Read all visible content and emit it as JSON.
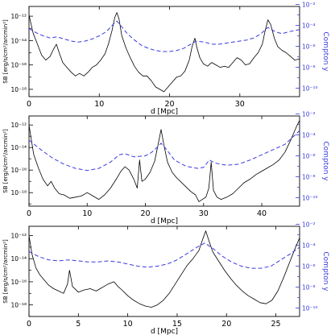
{
  "chart_data": [
    {
      "type": "line",
      "xlabel": "d [Mpc]",
      "ylabel_left": "SB [erg/s/cm²/arcmin²]",
      "ylabel_right": "Compton y",
      "xlim": [
        0,
        38.5
      ],
      "xticks": [
        0,
        10,
        20,
        30
      ],
      "ylim_left_log10": [
        -18.6,
        -11.2
      ],
      "yticks_left_exp": [
        -12,
        -14,
        -16,
        -18
      ],
      "ylim_right_log10": [
        -10.8,
        -2.2
      ],
      "yticks_right_exp": [
        -2,
        -4,
        -6,
        -8,
        -10
      ],
      "series": [
        {
          "style": "solid-black",
          "axis": "left",
          "x": [
            0,
            0.6,
            1.2,
            1.8,
            2.4,
            3.0,
            3.5,
            3.9,
            4.3,
            4.8,
            5.4,
            6.0,
            6.6,
            7.2,
            7.8,
            8.4,
            9.0,
            9.6,
            10.2,
            10.8,
            11.3,
            11.8,
            12.2,
            12.5,
            12.8,
            13.2,
            13.8,
            14.4,
            15.0,
            15.6,
            16.2,
            16.8,
            17.4,
            18.0,
            18.6,
            19.2,
            19.8,
            20.4,
            21.0,
            21.6,
            22.2,
            22.8,
            23.2,
            23.6,
            23.9,
            24.3,
            24.8,
            25.4,
            26.0,
            26.6,
            27.2,
            27.8,
            28.4,
            29.0,
            29.6,
            30.2,
            30.8,
            31.4,
            32.0,
            32.6,
            33.2,
            33.6,
            34.0,
            34.4,
            34.9,
            35.4,
            36.0,
            36.6,
            37.2,
            37.8,
            38.5
          ],
          "y_log10": [
            -11.9,
            -13.4,
            -14.3,
            -15.2,
            -15.6,
            -15.3,
            -14.7,
            -14.3,
            -15.0,
            -15.8,
            -16.2,
            -16.6,
            -16.9,
            -16.7,
            -16.9,
            -16.6,
            -16.2,
            -16.0,
            -15.6,
            -15.1,
            -14.3,
            -13.2,
            -12.1,
            -11.7,
            -12.2,
            -13.6,
            -14.6,
            -15.4,
            -16.1,
            -16.6,
            -16.9,
            -16.9,
            -17.3,
            -17.8,
            -18.0,
            -18.2,
            -17.8,
            -17.4,
            -17.0,
            -16.9,
            -16.5,
            -15.6,
            -14.5,
            -13.8,
            -14.6,
            -15.4,
            -15.9,
            -16.1,
            -15.8,
            -16.0,
            -16.2,
            -16.1,
            -16.2,
            -15.8,
            -15.4,
            -15.6,
            -16.0,
            -15.9,
            -15.4,
            -15.0,
            -14.3,
            -13.2,
            -12.3,
            -12.7,
            -13.8,
            -14.5,
            -14.8,
            -15.0,
            -15.3,
            -15.6,
            -15.5
          ]
        },
        {
          "style": "dashed-blue",
          "axis": "right",
          "x": [
            0,
            1,
            2,
            3,
            4,
            5,
            6,
            7,
            8,
            9,
            10,
            11,
            12,
            12.5,
            13,
            14,
            15,
            16,
            17,
            18,
            19,
            20,
            21,
            22,
            23,
            23.8,
            25,
            26,
            27,
            28,
            29,
            30,
            31,
            32,
            33,
            34,
            35,
            36,
            37,
            38.5
          ],
          "y_log10": [
            -4.3,
            -4.7,
            -5.0,
            -5.2,
            -5.1,
            -5.3,
            -5.5,
            -5.6,
            -5.5,
            -5.3,
            -5.0,
            -4.6,
            -3.9,
            -3.6,
            -4.0,
            -4.8,
            -5.4,
            -5.9,
            -6.2,
            -6.4,
            -6.5,
            -6.5,
            -6.4,
            -6.2,
            -5.8,
            -5.5,
            -5.6,
            -5.8,
            -5.8,
            -5.7,
            -5.6,
            -5.5,
            -5.4,
            -5.2,
            -4.8,
            -4.2,
            -4.6,
            -4.8,
            -4.6,
            -4.4
          ]
        }
      ]
    },
    {
      "type": "line",
      "xlabel": "d [Mpc]",
      "ylabel_left": "SB [erg/s/cm²/arcmin²]",
      "ylabel_right": "Compton y",
      "xlim": [
        0,
        46.5
      ],
      "xticks": [
        0,
        10,
        20,
        30,
        40
      ],
      "ylim_left_log10": [
        -19.2,
        -11.2
      ],
      "yticks_left_exp": [
        -12,
        -14,
        -16,
        -18
      ],
      "ylim_right_log10": [
        -10.8,
        -2.2
      ],
      "yticks_right_exp": [
        -2,
        -4,
        -6,
        -8,
        -10
      ],
      "series": [
        {
          "style": "solid-black",
          "axis": "left",
          "x": [
            0,
            0.8,
            1.6,
            2.4,
            3.2,
            3.8,
            4.4,
            5.2,
            6.0,
            7.0,
            8.0,
            9.0,
            10.0,
            11.0,
            12.0,
            13.0,
            14.0,
            15.0,
            15.8,
            16.5,
            17.2,
            18.0,
            18.6,
            19.0,
            19.4,
            20.0,
            20.8,
            21.6,
            22.2,
            22.7,
            23.2,
            23.8,
            24.6,
            25.4,
            26.2,
            27.0,
            27.8,
            28.6,
            29.2,
            29.8,
            30.4,
            30.9,
            31.3,
            31.7,
            32.3,
            33.0,
            34.0,
            35.0,
            36.0,
            37.0,
            38.0,
            39.0,
            40.0,
            41.0,
            42.0,
            43.0,
            44.0,
            45.0,
            46.0,
            46.5
          ],
          "y_log10": [
            -12.0,
            -14.6,
            -15.8,
            -16.8,
            -17.4,
            -17.0,
            -17.6,
            -18.1,
            -18.2,
            -18.5,
            -18.4,
            -18.3,
            -18.0,
            -18.3,
            -18.6,
            -18.2,
            -17.6,
            -16.8,
            -16.1,
            -15.7,
            -16.0,
            -16.8,
            -17.6,
            -15.1,
            -17.0,
            -16.8,
            -16.2,
            -15.2,
            -13.7,
            -12.4,
            -13.8,
            -15.3,
            -16.2,
            -16.7,
            -17.1,
            -17.5,
            -17.9,
            -18.2,
            -18.8,
            -18.6,
            -18.4,
            -17.6,
            -15.3,
            -17.8,
            -18.4,
            -18.6,
            -18.4,
            -18.1,
            -17.6,
            -17.1,
            -16.8,
            -16.4,
            -16.1,
            -15.8,
            -15.5,
            -15.1,
            -14.4,
            -13.3,
            -12.1,
            -11.6
          ]
        },
        {
          "style": "dashed-blue",
          "axis": "right",
          "x": [
            0,
            2,
            4,
            6,
            8,
            10,
            12,
            14,
            15.5,
            16.5,
            18,
            20,
            21,
            22,
            22.7,
            23.5,
            25,
            27,
            29,
            30,
            31,
            32,
            34,
            36,
            38,
            40,
            42,
            44,
            46.5
          ],
          "y_log10": [
            -4.5,
            -5.4,
            -6.2,
            -6.8,
            -7.2,
            -7.4,
            -7.2,
            -6.6,
            -5.9,
            -5.8,
            -6.1,
            -6.0,
            -5.7,
            -5.2,
            -4.8,
            -5.3,
            -6.4,
            -7.0,
            -7.2,
            -7.1,
            -6.4,
            -6.7,
            -6.9,
            -6.8,
            -6.4,
            -5.9,
            -5.4,
            -4.9,
            -3.6
          ]
        }
      ]
    },
    {
      "type": "line",
      "xlabel": "d [Mpc]",
      "ylabel_left": "SB [erg/s/cm²/arcmin²]",
      "ylabel_right": "Compton y",
      "xlim": [
        0,
        27.4
      ],
      "xticks": [
        0,
        5,
        10,
        15,
        20,
        25
      ],
      "ylim_left_log10": [
        -19.0,
        -11.2
      ],
      "yticks_left_exp": [
        -12,
        -14,
        -16,
        -18
      ],
      "ylim_right_log10": [
        -10.8,
        -2.2
      ],
      "yticks_right_exp": [
        -2,
        -4,
        -6,
        -8,
        -10
      ],
      "series": [
        {
          "style": "solid-black",
          "axis": "left",
          "x": [
            0,
            0.3,
            0.7,
            1.1,
            1.5,
            2.0,
            2.5,
            3.0,
            3.5,
            3.9,
            4.1,
            4.4,
            5.0,
            5.6,
            6.2,
            6.8,
            7.4,
            8.0,
            8.6,
            9.0,
            9.4,
            10.0,
            10.6,
            11.2,
            11.8,
            12.4,
            13.0,
            13.6,
            14.2,
            14.8,
            15.4,
            16.0,
            16.6,
            17.2,
            17.6,
            17.9,
            18.2,
            18.6,
            19.2,
            19.8,
            20.4,
            21.0,
            21.6,
            22.2,
            22.8,
            23.4,
            24.0,
            24.6,
            25.2,
            25.8,
            26.4,
            27.0,
            27.4
          ],
          "y_log10": [
            -12.0,
            -13.6,
            -14.8,
            -15.4,
            -15.8,
            -16.3,
            -16.6,
            -16.8,
            -17.0,
            -16.2,
            -15.0,
            -16.4,
            -16.9,
            -16.7,
            -16.6,
            -16.8,
            -16.5,
            -16.2,
            -16.0,
            -16.4,
            -16.7,
            -17.2,
            -17.6,
            -17.9,
            -18.1,
            -18.2,
            -18.0,
            -17.6,
            -17.0,
            -16.2,
            -15.4,
            -14.6,
            -14.0,
            -13.3,
            -12.3,
            -11.6,
            -12.4,
            -13.4,
            -14.2,
            -15.0,
            -15.7,
            -16.3,
            -16.8,
            -17.2,
            -17.5,
            -17.8,
            -17.9,
            -17.6,
            -16.8,
            -15.6,
            -14.3,
            -13.0,
            -12.2
          ]
        },
        {
          "style": "dashed-blue",
          "axis": "right",
          "x": [
            0,
            1,
            2,
            3,
            4,
            5,
            6,
            7,
            8,
            9,
            10,
            11,
            12,
            13,
            14,
            15,
            16,
            17,
            17.8,
            18.6,
            19.5,
            20.5,
            21.5,
            22.5,
            23.5,
            24.5,
            25.5,
            26.5,
            27.4
          ],
          "y_log10": [
            -4.6,
            -5.1,
            -5.4,
            -5.5,
            -5.4,
            -5.5,
            -5.6,
            -5.6,
            -5.5,
            -5.6,
            -5.8,
            -6.0,
            -6.1,
            -6.0,
            -5.8,
            -5.4,
            -4.8,
            -4.2,
            -3.8,
            -4.3,
            -5.0,
            -5.6,
            -6.0,
            -6.2,
            -6.2,
            -6.0,
            -5.4,
            -4.8,
            -4.2
          ]
        }
      ]
    }
  ]
}
